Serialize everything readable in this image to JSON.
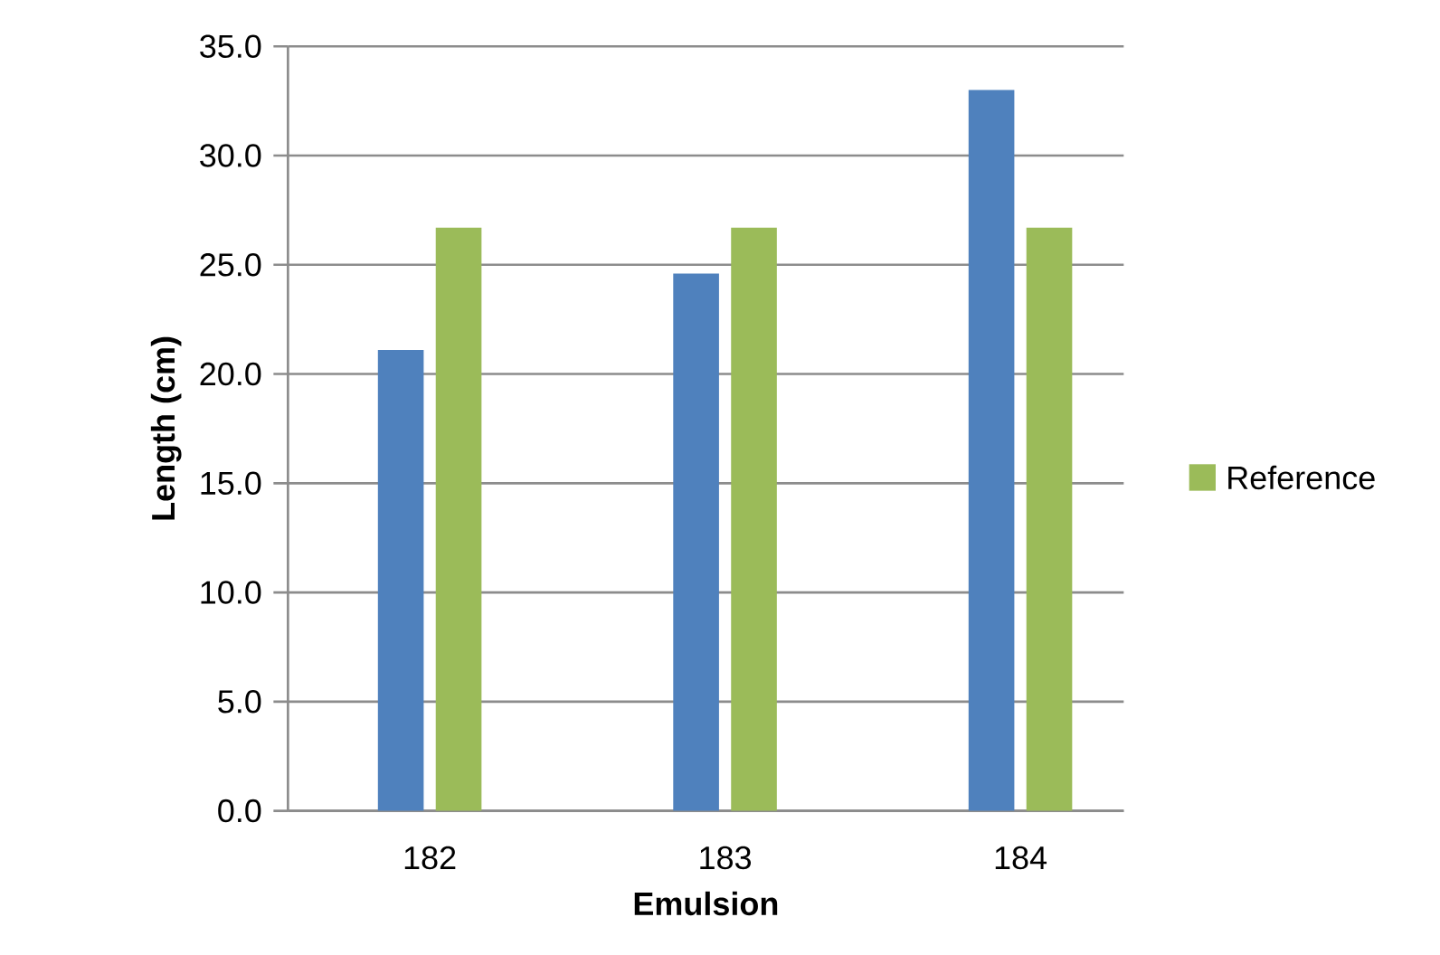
{
  "chart_data": {
    "type": "bar",
    "xlabel": "Emulsion",
    "ylabel": "Length (cm)",
    "categories": [
      "182",
      "183",
      "184"
    ],
    "series": [
      {
        "color": "#4f81bd",
        "values": [
          21.1,
          24.6,
          33.0
        ]
      },
      {
        "name": "Reference",
        "color": "#9bbb59",
        "values": [
          26.7,
          26.7,
          26.7
        ]
      }
    ],
    "ylim": [
      0,
      35
    ],
    "yticks": [
      {
        "value": 0,
        "label": "0.0"
      },
      {
        "value": 5,
        "label": "5.0"
      },
      {
        "value": 10,
        "label": "10.0"
      },
      {
        "value": 15,
        "label": "15.0"
      },
      {
        "value": 20,
        "label": "20.0"
      },
      {
        "value": 25,
        "label": "25.0"
      },
      {
        "value": 30,
        "label": "30.0"
      },
      {
        "value": 35,
        "label": "35.0"
      }
    ],
    "grid": "y",
    "legend": "right"
  }
}
